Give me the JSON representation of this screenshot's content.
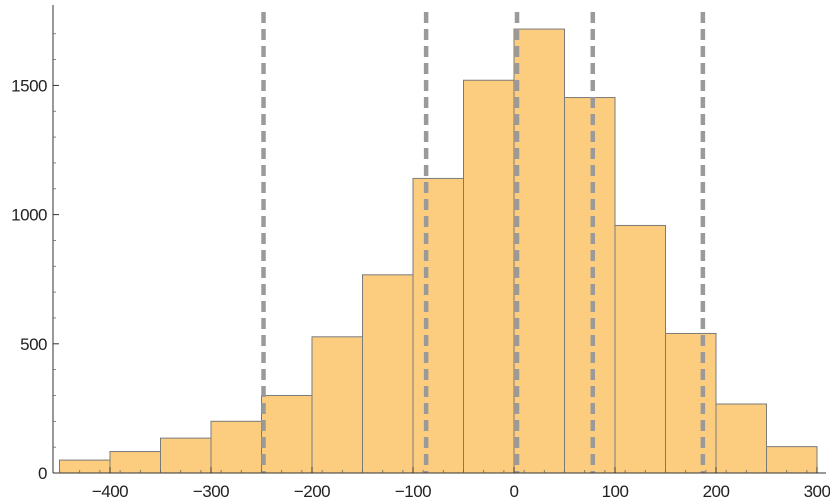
{
  "chart_data": {
    "type": "bar",
    "subtype": "histogram",
    "bin_width": 50,
    "bins": [
      {
        "start": -450,
        "end": -400,
        "count": 50
      },
      {
        "start": -400,
        "end": -350,
        "count": 83
      },
      {
        "start": -350,
        "end": -300,
        "count": 135
      },
      {
        "start": -300,
        "end": -250,
        "count": 200
      },
      {
        "start": -250,
        "end": -200,
        "count": 300
      },
      {
        "start": -200,
        "end": -150,
        "count": 527
      },
      {
        "start": -150,
        "end": -100,
        "count": 767
      },
      {
        "start": -100,
        "end": -50,
        "count": 1140
      },
      {
        "start": -50,
        "end": 0,
        "count": 1520
      },
      {
        "start": 0,
        "end": 50,
        "count": 1718
      },
      {
        "start": 50,
        "end": 100,
        "count": 1453
      },
      {
        "start": 100,
        "end": 150,
        "count": 958
      },
      {
        "start": 150,
        "end": 200,
        "count": 540
      },
      {
        "start": 200,
        "end": 250,
        "count": 267
      },
      {
        "start": 250,
        "end": 300,
        "count": 102
      }
    ],
    "reference_lines_x": [
      -248,
      -87,
      3,
      78,
      187
    ],
    "xlim": [
      -460,
      310
    ],
    "ylim": [
      0,
      1760
    ],
    "x_ticks": [
      {
        "value": -400,
        "label": "−400"
      },
      {
        "value": -300,
        "label": "−300"
      },
      {
        "value": -200,
        "label": "−200"
      },
      {
        "value": -100,
        "label": "−100"
      },
      {
        "value": 0,
        "label": "0"
      },
      {
        "value": 100,
        "label": "100"
      },
      {
        "value": 200,
        "label": "200"
      },
      {
        "value": 300,
        "label": "300"
      }
    ],
    "y_ticks": [
      {
        "value": 0,
        "label": "0"
      },
      {
        "value": 500,
        "label": "500"
      },
      {
        "value": 1000,
        "label": "1000"
      },
      {
        "value": 1500,
        "label": "1500"
      }
    ],
    "title": "",
    "xlabel": "",
    "ylabel": "",
    "grid": false,
    "legend": "none",
    "colors": {
      "bar_fill": "#fdcd7f",
      "bar_edge": "#7a7a7a",
      "reference_line": "#9a9a9a",
      "axis": "#333333"
    }
  }
}
